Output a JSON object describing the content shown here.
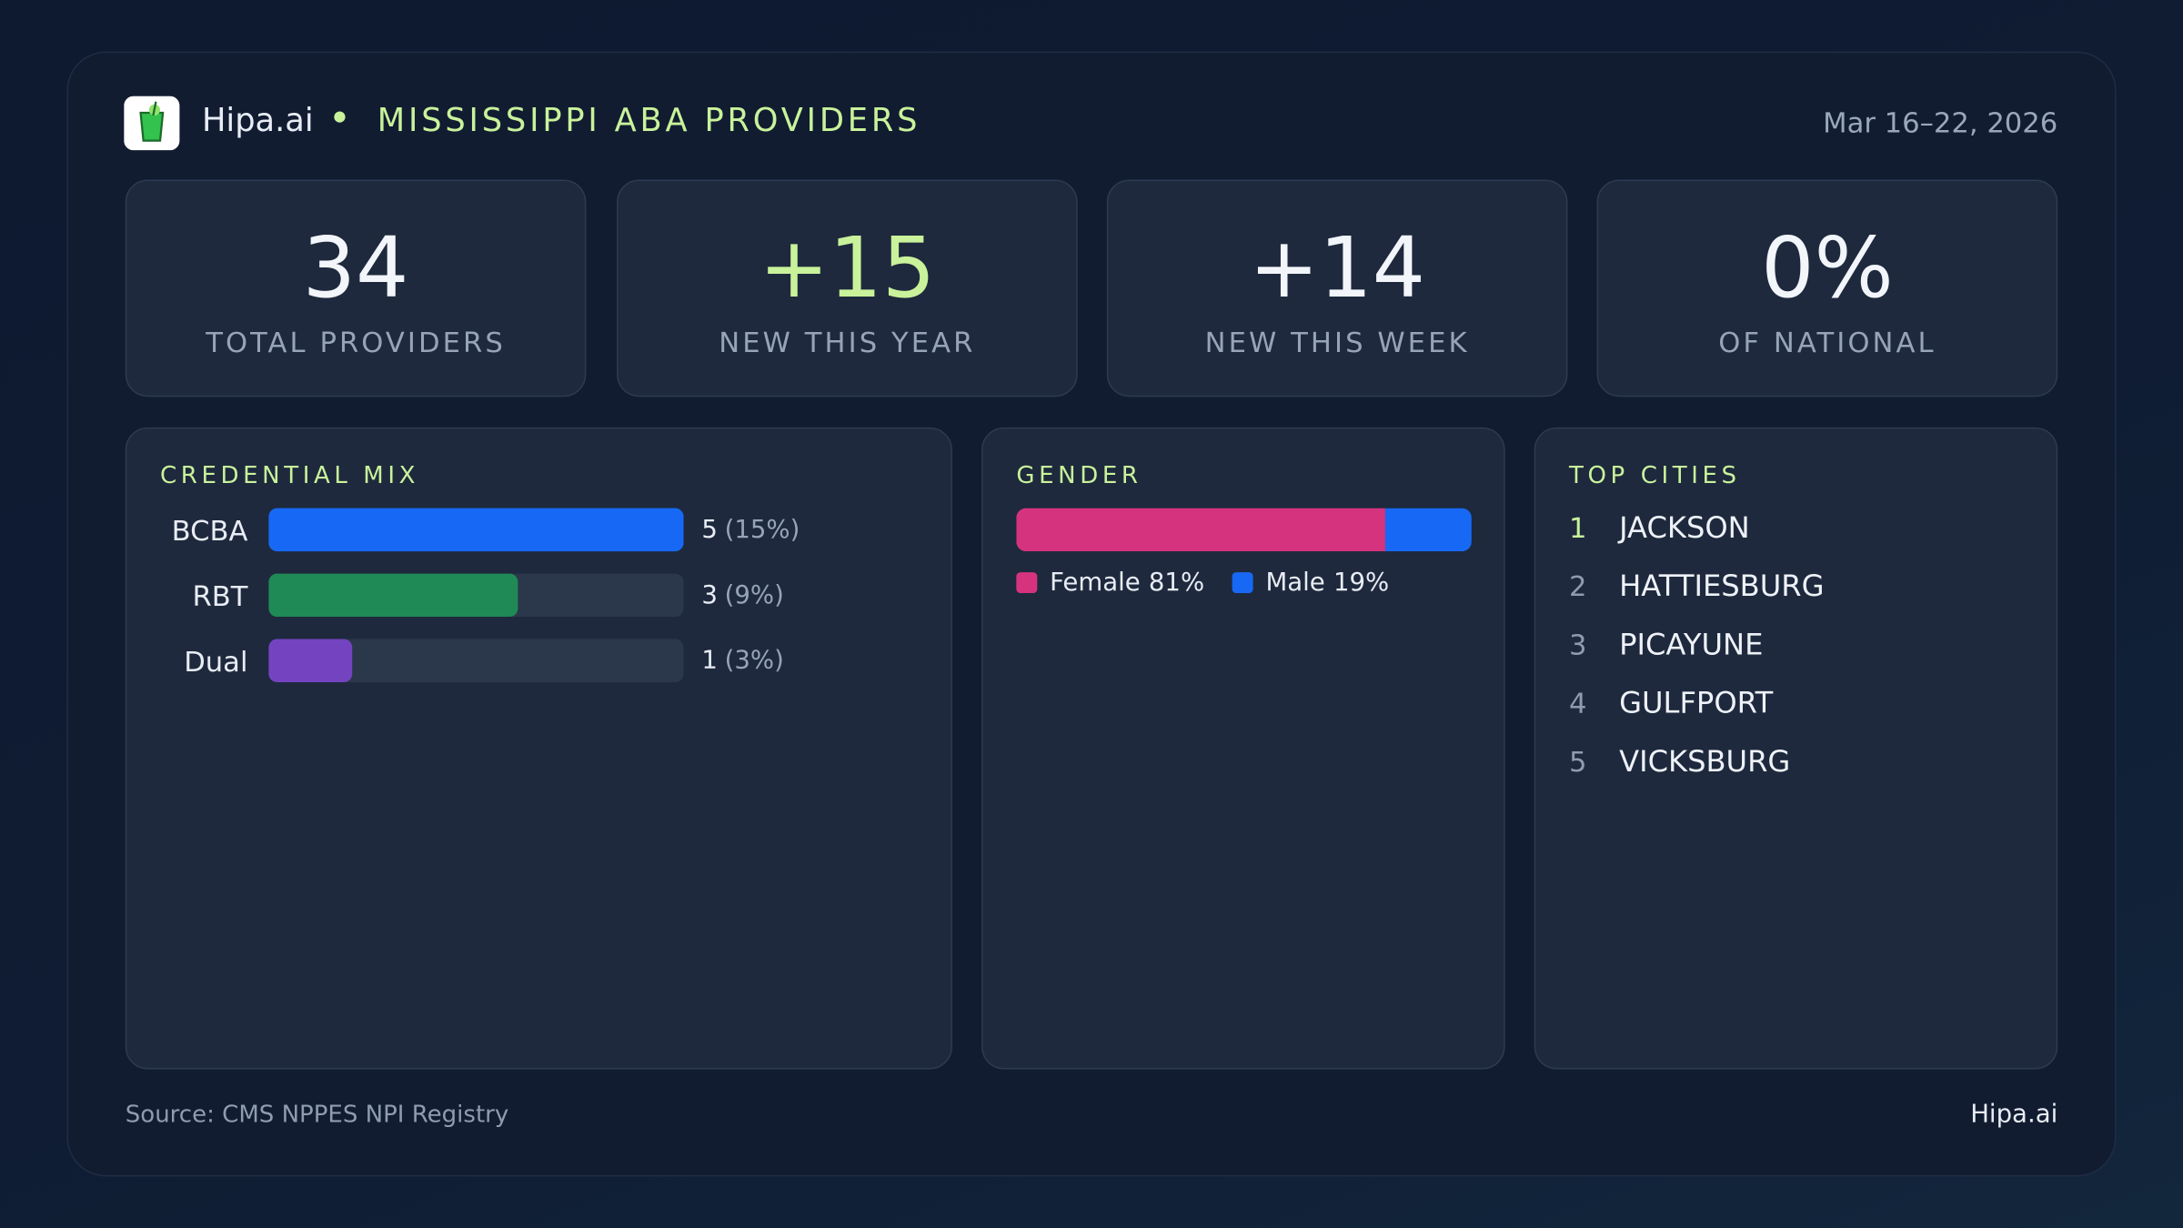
{
  "header": {
    "brand": "Hipa.ai",
    "title": "MISSISSIPPI ABA PROVIDERS",
    "date": "Mar 16–22, 2026"
  },
  "kpis": [
    {
      "value": "34",
      "label": "TOTAL PROVIDERS"
    },
    {
      "value": "+15",
      "label": "NEW THIS YEAR"
    },
    {
      "value": "+14",
      "label": "NEW THIS WEEK"
    },
    {
      "value": "0%",
      "label": "OF NATIONAL"
    }
  ],
  "credential_mix": {
    "title": "CREDENTIAL MIX",
    "items": [
      {
        "name": "BCBA",
        "count": 5,
        "share": {
          "value": 15,
          "label": "(15%)"
        },
        "color": "#1769f5"
      },
      {
        "name": "RBT",
        "count": 3,
        "share": {
          "value": 9,
          "label": "(9%)"
        },
        "color": "#1f8a55"
      },
      {
        "name": "Dual",
        "count": 1,
        "share": {
          "value": 3,
          "label": "(3%)"
        },
        "color": "#7444c0"
      }
    ]
  },
  "gender": {
    "title": "GENDER",
    "segments": [
      {
        "name": "Female",
        "value": 81,
        "value_label": "81%",
        "color": "#d6337f"
      },
      {
        "name": "Male",
        "value": 19,
        "value_label": "19%",
        "color": "#1769f5"
      }
    ]
  },
  "top_cities": {
    "title": "TOP CITIES",
    "items": [
      {
        "rank": "1",
        "name": "JACKSON"
      },
      {
        "rank": "2",
        "name": "HATTIESBURG"
      },
      {
        "rank": "3",
        "name": "PICAYUNE"
      },
      {
        "rank": "4",
        "name": "GULFPORT"
      },
      {
        "rank": "5",
        "name": "VICKSBURG"
      }
    ]
  },
  "footer": {
    "source": "Source: CMS NPPES NPI Registry",
    "brand": "Hipa.ai"
  }
}
